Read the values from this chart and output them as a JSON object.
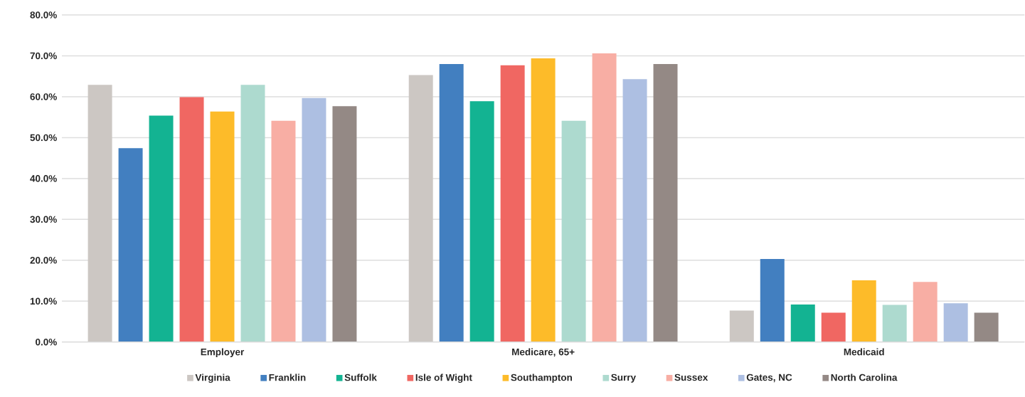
{
  "chart_data": {
    "type": "bar",
    "categories": [
      "Employer",
      "Medicare, 65+",
      "Medicaid"
    ],
    "series": [
      {
        "name": "Virginia",
        "color": "#ccc7c3",
        "values": [
          62.9,
          65.3,
          7.7
        ]
      },
      {
        "name": "Franklin",
        "color": "#427fc0",
        "values": [
          47.4,
          68.0,
          20.3
        ]
      },
      {
        "name": "Suffolk",
        "color": "#13b392",
        "values": [
          55.4,
          58.9,
          9.2
        ]
      },
      {
        "name": "Isle of Wight",
        "color": "#f06762",
        "values": [
          59.9,
          67.7,
          7.2
        ]
      },
      {
        "name": "Southampton",
        "color": "#fdbb29",
        "values": [
          56.4,
          69.4,
          15.1
        ]
      },
      {
        "name": "Surry",
        "color": "#addacf",
        "values": [
          62.9,
          54.1,
          9.1
        ]
      },
      {
        "name": "Sussex",
        "color": "#f8aea4",
        "values": [
          54.1,
          70.6,
          14.7
        ]
      },
      {
        "name": "Gates, NC",
        "color": "#adbfe2",
        "values": [
          59.7,
          64.3,
          9.5
        ]
      },
      {
        "name": "North Carolina",
        "color": "#948985",
        "values": [
          57.7,
          68.0,
          7.2
        ]
      }
    ],
    "ylim": [
      0,
      80
    ],
    "yticks": [
      {
        "value": 0,
        "label": "0.0%"
      },
      {
        "value": 10,
        "label": "10.0%"
      },
      {
        "value": 20,
        "label": "20.0%"
      },
      {
        "value": 30,
        "label": "30.0%"
      },
      {
        "value": 40,
        "label": "40.0%"
      },
      {
        "value": 50,
        "label": "50.0%"
      },
      {
        "value": 60,
        "label": "60.0%"
      },
      {
        "value": 70,
        "label": "70.0%"
      },
      {
        "value": 80,
        "label": "80.0%"
      }
    ],
    "grid": "y",
    "legend": "bottom"
  }
}
